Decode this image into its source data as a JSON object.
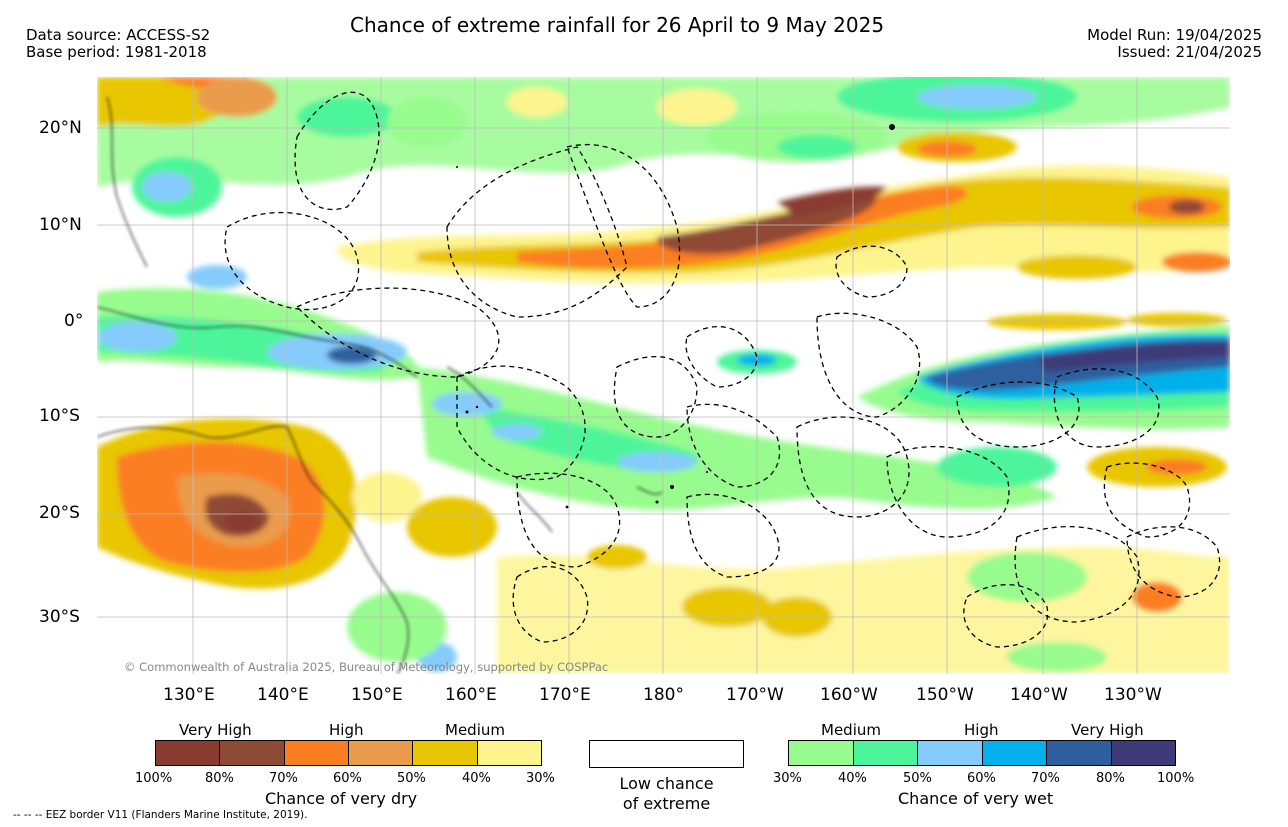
{
  "header": {
    "title": "Chance of extreme rainfall for 26 April to 9 May 2025",
    "source_line1": "Data source: ACCESS-S2",
    "source_line2": "Base period: 1981-2018",
    "run_line1": "Model Run: 19/04/2025",
    "run_line2": "Issued: 21/04/2025"
  },
  "map": {
    "lat_labels": [
      "20°N",
      "10°N",
      "0°",
      "10°S",
      "20°S",
      "30°S"
    ],
    "lon_labels": [
      "130°E",
      "140°E",
      "150°E",
      "160°E",
      "170°E",
      "180°",
      "170°W",
      "160°W",
      "150°W",
      "140°W",
      "130°W"
    ],
    "copyright": "© Commonwealth of Australia 2025, Bureau of Meteorology, supported by COSPPac"
  },
  "legend": {
    "dry": {
      "categories": [
        "Very High",
        "High",
        "Medium"
      ],
      "ticks": [
        "100%",
        "80%",
        "70%",
        "60%",
        "50%",
        "40%",
        "30%"
      ],
      "colors": [
        "#8a3b30",
        "#8f4a36",
        "#fc7e23",
        "#ea9b4b",
        "#e8c605",
        "#fdf48e"
      ],
      "title": "Chance of very dry"
    },
    "low": {
      "line1": "Low chance",
      "line2": "of extreme",
      "color": "#ffffff"
    },
    "wet": {
      "categories": [
        "Medium",
        "High",
        "Very High"
      ],
      "ticks": [
        "30%",
        "40%",
        "50%",
        "60%",
        "70%",
        "80%",
        "100%"
      ],
      "colors": [
        "#98fb8e",
        "#4df59a",
        "#85cbfb",
        "#04b0eb",
        "#2f5e9f",
        "#3c3b77"
      ],
      "title": "Chance of very wet"
    },
    "eez_note": "-- -- -- EEZ border V11 (Flanders Marine Institute, 2019)."
  }
}
